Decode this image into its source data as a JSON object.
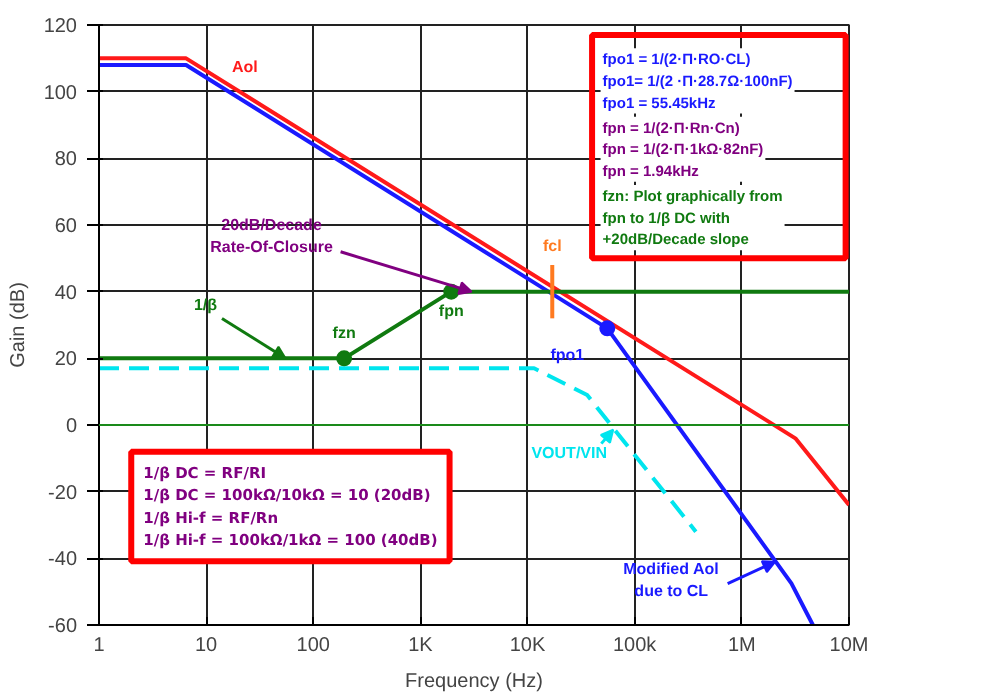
{
  "chart_data": {
    "type": "line",
    "xlabel": "Frequency (Hz)",
    "ylabel": "Gain (dB)",
    "log": "x",
    "grid": true,
    "xlim": [
      1,
      10000000
    ],
    "ylim": [
      -60,
      120
    ],
    "xticks": [
      1,
      10,
      100,
      {
        "value": 1000,
        "label": "1K"
      },
      {
        "value": 10000,
        "label": "10K"
      },
      {
        "value": 100000,
        "label": "100k"
      },
      {
        "value": 1000000,
        "label": "1M"
      },
      {
        "value": 10000000,
        "label": "10M"
      }
    ],
    "yticks": [
      -60,
      -40,
      -20,
      0,
      20,
      40,
      60,
      80,
      100,
      120
    ],
    "ref_lines": [
      {
        "axis": "y",
        "value": 0,
        "color": "#1a8a1a"
      }
    ],
    "series": [
      {
        "color": "#ff1a1a",
        "x": [
          1,
          6.5,
          3160000,
          10000000
        ],
        "values": [
          110,
          110,
          -4,
          -24
        ]
      },
      {
        "color": "#1a1aff",
        "x": [
          1,
          6.5,
          55450,
          2900000,
          4600000
        ],
        "values": [
          108,
          108,
          29,
          -47.5,
          -60
        ]
      },
      {
        "color": "#00e5ee",
        "line_style": "dashed",
        "x": [
          1,
          11500,
          36000,
          71000,
          372000
        ],
        "values": [
          17,
          17,
          9,
          -3,
          -32
        ]
      },
      {
        "color": "#107a10",
        "x": [
          1,
          194,
          1940,
          10000000
        ],
        "values": [
          20,
          20,
          40,
          40
        ]
      },
      {
        "color": "#ff7a20",
        "x": [
          17000,
          17000
        ],
        "values": [
          48,
          32
        ]
      },
      {
        "type": "scatter",
        "marker": "circle",
        "color": "#107a10",
        "x": [
          194,
          1940
        ],
        "values": [
          20,
          40
        ]
      },
      {
        "type": "scatter",
        "marker": "circle",
        "color": "#1a1aff",
        "x": [
          55450
        ],
        "values": [
          29
        ]
      }
    ],
    "annotations": [
      {
        "text": "Aol",
        "x": 23,
        "y": 100
      },
      {
        "text": "20dB/Decade\nRate-Of-Closure",
        "x": 3000,
        "y": 40
      },
      {
        "text": "1/β",
        "x": 55,
        "y": 20
      },
      {
        "text": "fzn",
        "x": 194,
        "y": 20
      },
      {
        "text": "fpn",
        "x": 1940,
        "y": 40
      },
      {
        "text": "fcl",
        "x": 17000,
        "y": 48
      },
      {
        "text": "fpo1",
        "x": 55450,
        "y": 29
      },
      {
        "text": "VOUT/VIN",
        "x": 63000,
        "y": -1.4
      },
      {
        "text": "Modified Aol\ndue to CL",
        "x": 2050000,
        "y": -41
      },
      "fpo1 = 1/(2·Π·RO·CL)\nfpo1= 1/(2 ·Π·28.7Ω·100nF)\nfpo1 = 55.45kHz",
      "fpn = 1/(2·Π·Rn·Cn)\nfpn = 1/(2·Π·1kΩ·82nF)\nfpn = 1.94kHz",
      "fzn: Plot graphically from\n      fpn to 1/β DC with\n      +20dB/Decade slope",
      "1/β DC = RF/RI\n1/β DC = 100kΩ/10kΩ = 10 (20dB)\n1/β Hi-f = RF/Rn\n1/β Hi-f = 100kΩ/1kΩ = 100 (40dB)"
    ]
  }
}
